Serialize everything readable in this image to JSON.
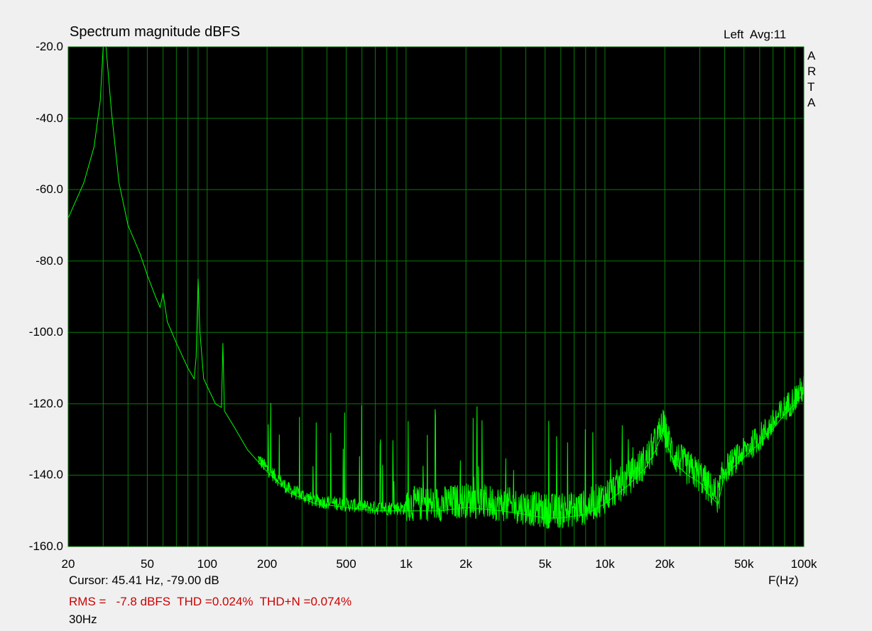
{
  "window": {
    "title": "Spectrum magnitude dBFS",
    "channel_info": "Left  Avg:11",
    "watermark": [
      "A",
      "R",
      "T",
      "A"
    ]
  },
  "readouts": {
    "cursor": "Cursor: 45.41 Hz, -79.00 dB",
    "measurements": "RMS =   -7.8 dBFS  THD =0.024%  THD+N =0.074%",
    "signal": "30Hz"
  },
  "colors": {
    "background": "#f0f0f0",
    "plot_bg": "#000000",
    "grid": "#0b7a0b",
    "trace": "#00ff00",
    "measurement_text": "#cc0000"
  },
  "chart_data": {
    "type": "line",
    "title": "Spectrum magnitude dBFS",
    "xlabel": "F(Hz)",
    "ylabel": "",
    "xscale": "log",
    "xlim": [
      20,
      100000
    ],
    "ylim": [
      -160,
      -20
    ],
    "grid": true,
    "y_ticks": [
      -20,
      -40,
      -60,
      -80,
      -100,
      -120,
      -140,
      -160
    ],
    "y_tick_labels": [
      "-20.0",
      "-40.0",
      "-60.0",
      "-80.0",
      "-100.0",
      "-120.0",
      "-140.0",
      "-160.0"
    ],
    "x_tick_values": [
      20,
      50,
      100,
      200,
      500,
      1000,
      2000,
      5000,
      10000,
      20000,
      50000,
      100000
    ],
    "x_tick_labels": [
      "20",
      "50",
      "100",
      "200",
      "500",
      "1k",
      "2k",
      "5k",
      "10k",
      "20k",
      "50k",
      "100k"
    ],
    "series": [
      {
        "values_note_x": "Hz",
        "x": [
          20,
          24,
          27,
          29,
          30,
          31,
          33,
          36,
          40,
          46,
          50,
          55,
          58,
          60,
          63,
          70,
          80,
          86,
          88,
          90,
          92,
          96,
          110,
          118,
          120,
          122,
          135,
          160,
          200,
          260,
          350,
          500,
          700,
          1000,
          1500,
          2000,
          3000,
          4000,
          5000,
          6000,
          8000,
          10000,
          13000,
          16000,
          18000,
          19500,
          22000,
          26000,
          30000,
          34000,
          37000,
          40000,
          50000,
          60000,
          70000,
          80000,
          90000,
          100000
        ],
        "y": [
          -68,
          -58,
          -48,
          -35,
          -20,
          -20,
          -38,
          -58,
          -70,
          -78,
          -84,
          -90,
          -93,
          -89,
          -97,
          -103,
          -110,
          -113,
          -107,
          -85,
          -100,
          -113,
          -120,
          -121,
          -103,
          -122,
          -126,
          -133,
          -139,
          -145,
          -148,
          -149,
          -150,
          -150,
          -150,
          -149,
          -150,
          -151,
          -152,
          -152,
          -151,
          -148,
          -143,
          -138,
          -133,
          -128,
          -136,
          -140,
          -142,
          -146,
          -148,
          -140,
          -135,
          -131,
          -127,
          -123,
          -120,
          -117
        ]
      }
    ]
  }
}
